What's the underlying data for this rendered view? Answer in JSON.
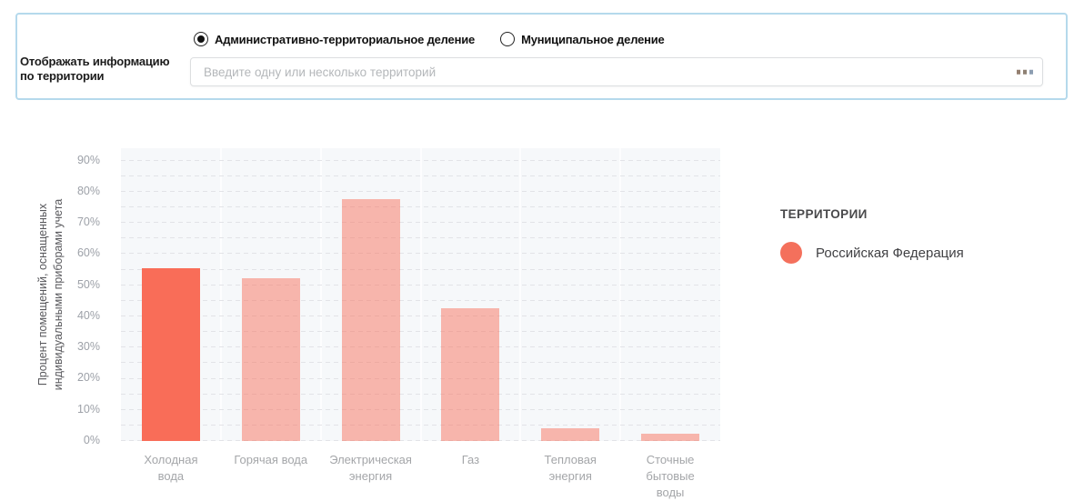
{
  "filter_panel": {
    "division_options": [
      {
        "label": "Административно-территориальное деление",
        "selected": true
      },
      {
        "label": "Муниципальное деление",
        "selected": false
      }
    ],
    "territory_label": "Отображать информацию по территории",
    "territory_input": {
      "value": "",
      "placeholder": "Введите одну или несколько территорий"
    },
    "ellipsis_icon": "more-options"
  },
  "chart_data": {
    "type": "bar",
    "title": "",
    "xlabel": "",
    "ylabel": "Процент помещений, оснащенных\nиндивидуальными приборами учета",
    "ylabel_lines": [
      "Процент помещений, оснащенных",
      "индивидуальными приборами учета"
    ],
    "categories": [
      "Холодная вода",
      "Горячая вода",
      "Электрическая энергия",
      "Газ",
      "Тепловая энергия",
      "Сточные бытовые воды"
    ],
    "category_lines": [
      [
        "Холодная",
        "вода"
      ],
      [
        "Горячая вода"
      ],
      [
        "Электрическая",
        "энергия"
      ],
      [
        "Газ"
      ],
      [
        "Тепловая",
        "энергия"
      ],
      [
        "Сточные",
        "бытовые",
        "воды"
      ]
    ],
    "series": [
      {
        "name": "Российская Федерация",
        "values": [
          55.5,
          52.3,
          77.7,
          42.5,
          4,
          2.2
        ]
      }
    ],
    "highlight_index": 0,
    "ylim": [
      0,
      94
    ],
    "ytick_step": 10,
    "ytick_suffix": "%",
    "axis_max_label": 90,
    "grid": "dashed horizontal every 5%",
    "legend_position": "right",
    "colors": {
      "bar_highlight": "#f96d58",
      "bar_normal": "rgba(249,109,88,0.48)",
      "plot_background": "#f6f8fa"
    }
  },
  "legend": {
    "title": "ТЕРРИТОРИИ",
    "items": [
      {
        "label": "Российская Федерация",
        "color": "#f4705c"
      }
    ]
  }
}
